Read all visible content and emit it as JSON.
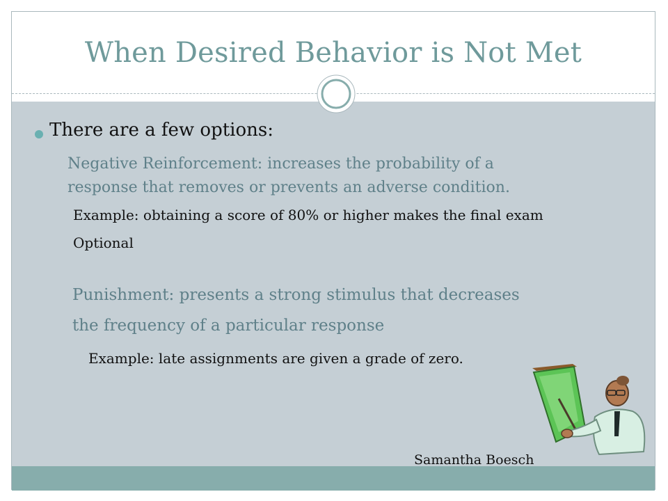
{
  "slide": {
    "title": "When Desired Behavior is Not Met",
    "bullet": "There are a few options:",
    "negative_reinforcement": {
      "line1": "Negative Reinforcement: increases the probability of a",
      "line2": "response that removes or prevents an adverse condition.",
      "example_line1": "Example: obtaining a score of 80% or higher makes the final exam",
      "example_line2": "Optional"
    },
    "punishment": {
      "line1": "Punishment: presents a strong stimulus that decreases",
      "line2": "the frequency of a particular response",
      "example": "Example: late assignments are given a grade of zero."
    },
    "author": "Samantha Boesch"
  },
  "icons": {
    "ornament": "circle-ornament-icon",
    "clipart": "presenter-clipart-icon"
  },
  "colors": {
    "title": "#6f9a9b",
    "content_background": "#c5cfd5",
    "footer_band": "#87adac",
    "subtext": "#5f8089",
    "bullet": "#6ab0b1"
  }
}
